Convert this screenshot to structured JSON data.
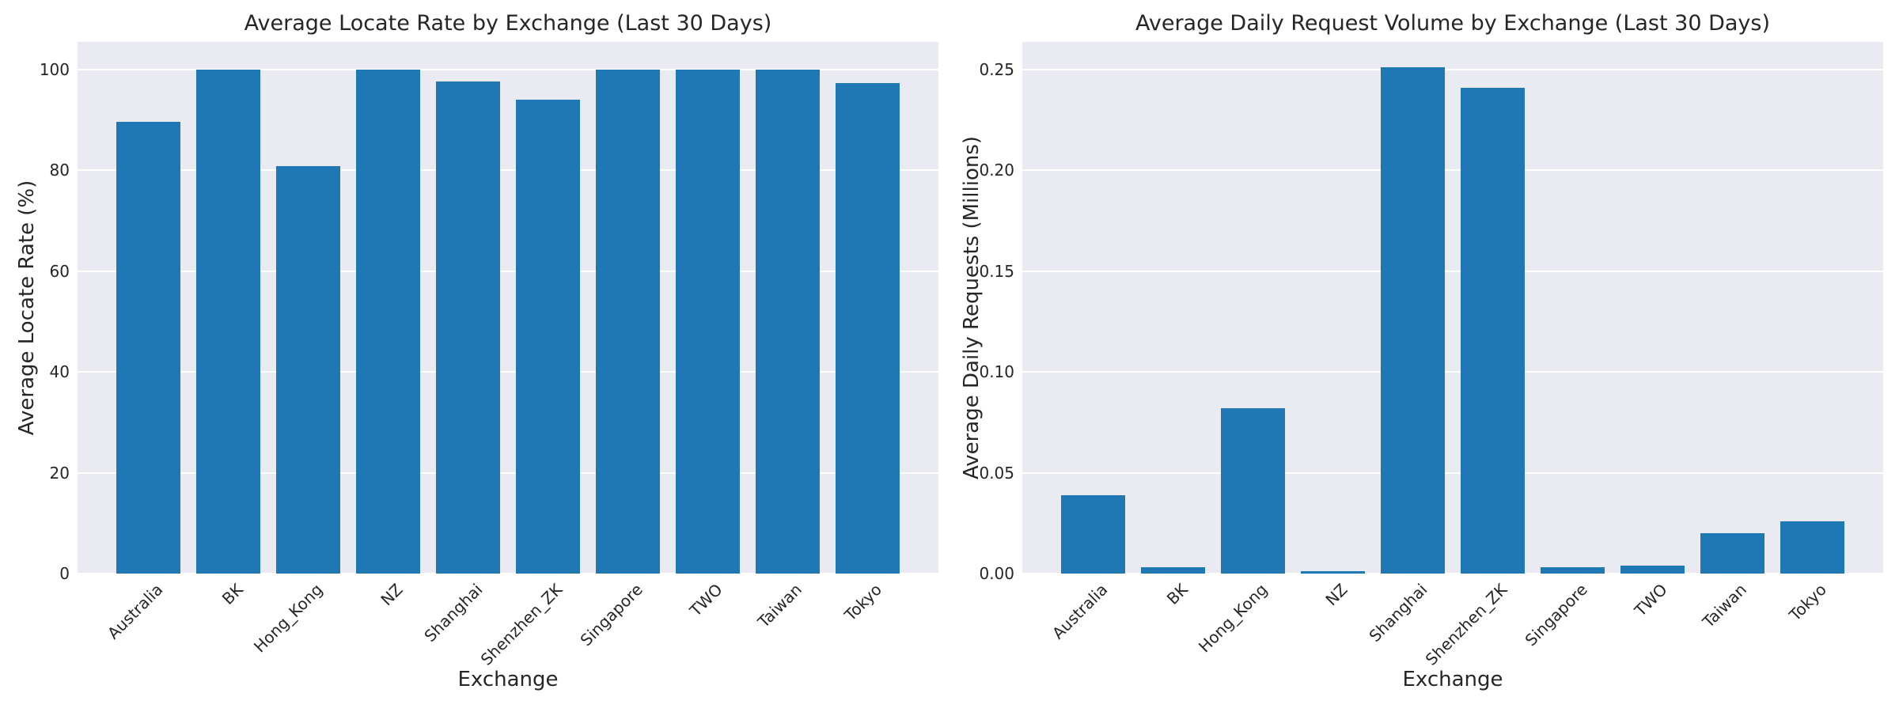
{
  "style": {
    "bar_color": "#1f77b4",
    "plot_background": "#eaeaf2",
    "grid_color": "#ffffff",
    "text_color": "#262626",
    "figure_background": "#ffffff"
  },
  "chart_data": [
    {
      "type": "bar",
      "title": "Average Locate Rate by Exchange (Last 30 Days)",
      "xlabel": "Exchange",
      "ylabel": "Average Locate Rate (%)",
      "categories": [
        "Australia",
        "BK",
        "Hong_Kong",
        "NZ",
        "Shanghai",
        "Shenzhen_ZK",
        "Singapore",
        "TWO",
        "Taiwan",
        "Tokyo"
      ],
      "values": [
        89.6,
        100.0,
        80.8,
        100.0,
        97.6,
        94.0,
        100.0,
        100.0,
        100.0,
        97.4
      ],
      "ylim": [
        0,
        105.5
      ],
      "yticks": [
        0,
        20,
        40,
        60,
        80,
        100
      ],
      "ytick_labels": [
        "0",
        "20",
        "40",
        "60",
        "80",
        "100"
      ],
      "grid": true,
      "legend": null
    },
    {
      "type": "bar",
      "title": "Average Daily Request Volume by Exchange (Last 30 Days)",
      "xlabel": "Exchange",
      "ylabel": "Average Daily Requests (Millions)",
      "categories": [
        "Australia",
        "BK",
        "Hong_Kong",
        "NZ",
        "Shanghai",
        "Shenzhen_ZK",
        "Singapore",
        "TWO",
        "Taiwan",
        "Tokyo"
      ],
      "values": [
        0.039,
        0.003,
        0.082,
        0.001,
        0.251,
        0.241,
        0.003,
        0.004,
        0.02,
        0.026
      ],
      "ylim": [
        0,
        0.2637
      ],
      "yticks": [
        0,
        0.05,
        0.1,
        0.15,
        0.2,
        0.25
      ],
      "ytick_labels": [
        "0.00",
        "0.05",
        "0.10",
        "0.15",
        "0.20",
        "0.25"
      ],
      "grid": true,
      "legend": null
    }
  ]
}
